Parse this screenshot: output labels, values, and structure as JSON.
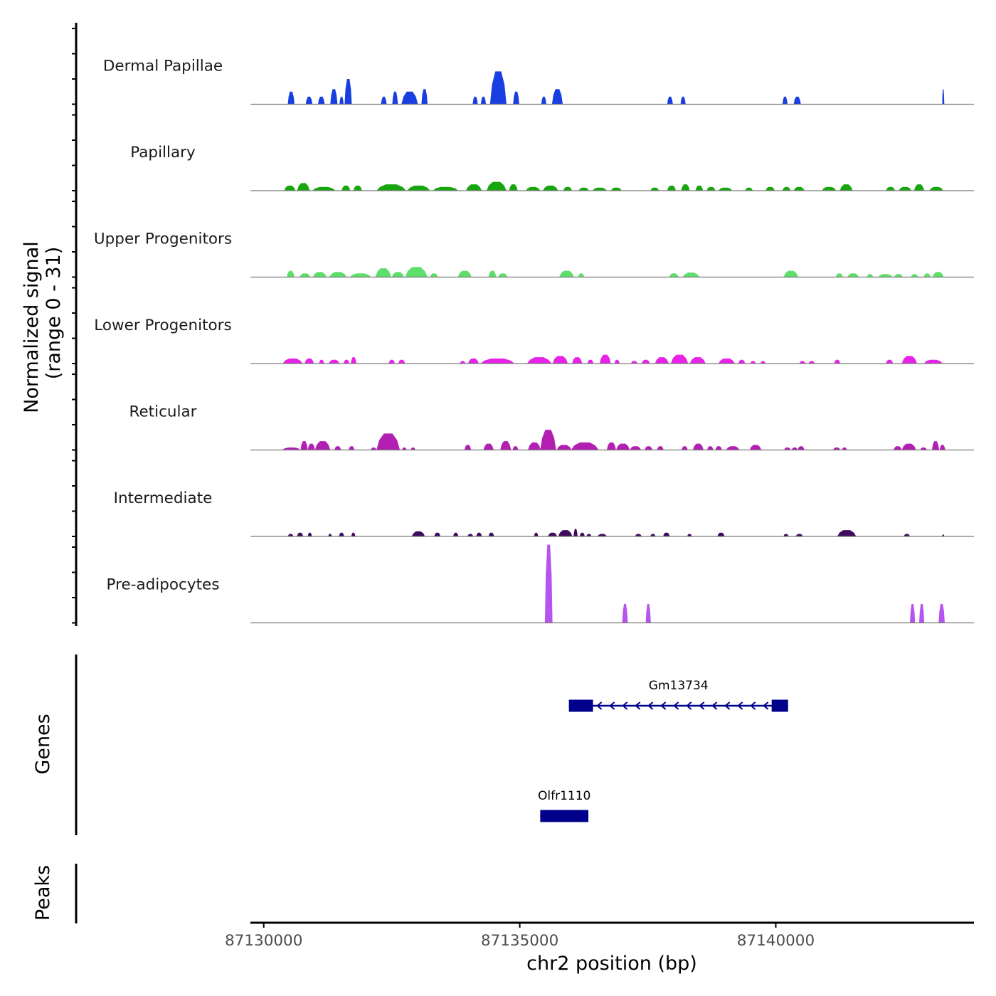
{
  "chart_data": {
    "type": "area",
    "chromosome": "chr2",
    "xlabel": "chr2 position (bp)",
    "ylabel_line1": "Normalized signal",
    "ylabel_line2": "(range 0 - 31)",
    "y_range": [
      0,
      31
    ],
    "xlim": [
      87129740,
      87143870
    ],
    "x_ticks": [
      87130000,
      87135000,
      87140000
    ],
    "x_tick_labels": [
      "87130000",
      "87135000",
      "87140000"
    ],
    "tracks": [
      {
        "name": "Dermal Papillae",
        "color": "#1a3fe0",
        "peaks": [
          [
            87130470,
            87130600,
            5
          ],
          [
            87130820,
            87130950,
            3
          ],
          [
            87131060,
            87131190,
            3
          ],
          [
            87131300,
            87131440,
            6
          ],
          [
            87131480,
            87131560,
            3
          ],
          [
            87131580,
            87131720,
            10
          ],
          [
            87132290,
            87132400,
            3
          ],
          [
            87132510,
            87132620,
            5
          ],
          [
            87132690,
            87133010,
            5
          ],
          [
            87133080,
            87133200,
            6
          ],
          [
            87134080,
            87134180,
            3
          ],
          [
            87134240,
            87134340,
            3
          ],
          [
            87134420,
            87134740,
            13
          ],
          [
            87134870,
            87134990,
            5
          ],
          [
            87135420,
            87135520,
            3
          ],
          [
            87135630,
            87135840,
            6
          ],
          [
            87137880,
            87137990,
            3
          ],
          [
            87138140,
            87138240,
            3
          ],
          [
            87140130,
            87140230,
            3
          ],
          [
            87140350,
            87140490,
            3
          ],
          [
            87143250,
            87143290,
            6
          ]
        ]
      },
      {
        "name": "Papillary",
        "color": "#18a60e",
        "peaks": [
          [
            87130400,
            87130620,
            2
          ],
          [
            87130650,
            87130900,
            3
          ],
          [
            87130950,
            87131400,
            1.5
          ],
          [
            87131520,
            87131690,
            2
          ],
          [
            87131750,
            87131920,
            2
          ],
          [
            87132200,
            87132780,
            2.5
          ],
          [
            87132800,
            87133250,
            2
          ],
          [
            87133300,
            87133800,
            1.5
          ],
          [
            87133950,
            87134260,
            2.5
          ],
          [
            87134350,
            87134740,
            3.5
          ],
          [
            87134790,
            87134960,
            2.5
          ],
          [
            87135120,
            87135400,
            1.5
          ],
          [
            87135450,
            87135750,
            2
          ],
          [
            87135850,
            87136020,
            1.5
          ],
          [
            87136150,
            87136350,
            1.2
          ],
          [
            87136420,
            87136700,
            1.2
          ],
          [
            87136780,
            87136990,
            1.2
          ],
          [
            87137550,
            87137720,
            1.2
          ],
          [
            87137880,
            87138050,
            2
          ],
          [
            87138150,
            87138320,
            2.5
          ],
          [
            87138430,
            87138580,
            2
          ],
          [
            87138650,
            87138820,
            1.5
          ],
          [
            87138880,
            87139150,
            1.2
          ],
          [
            87139400,
            87139550,
            1.2
          ],
          [
            87139800,
            87139980,
            1.5
          ],
          [
            87140130,
            87140290,
            1.5
          ],
          [
            87140350,
            87140560,
            1.5
          ],
          [
            87140900,
            87141180,
            1.5
          ],
          [
            87141250,
            87141500,
            2.5
          ],
          [
            87142150,
            87142330,
            1.5
          ],
          [
            87142400,
            87142650,
            1.5
          ],
          [
            87142700,
            87142900,
            2.5
          ],
          [
            87143000,
            87143270,
            1.5
          ]
        ]
      },
      {
        "name": "Upper Progenitors",
        "color": "#5ede6a",
        "peaks": [
          [
            87130450,
            87130600,
            2.5
          ],
          [
            87130700,
            87130910,
            1.5
          ],
          [
            87130960,
            87131230,
            2
          ],
          [
            87131280,
            87131620,
            2
          ],
          [
            87131680,
            87132100,
            1.5
          ],
          [
            87132180,
            87132490,
            3.5
          ],
          [
            87132500,
            87132740,
            2
          ],
          [
            87132760,
            87133200,
            4
          ],
          [
            87133250,
            87133400,
            1.5
          ],
          [
            87133790,
            87134060,
            2.5
          ],
          [
            87134390,
            87134540,
            2.5
          ],
          [
            87134580,
            87134760,
            1.5
          ],
          [
            87135770,
            87136060,
            2.5
          ],
          [
            87136140,
            87136260,
            1.5
          ],
          [
            87137920,
            87138100,
            1.5
          ],
          [
            87138180,
            87138510,
            1.8
          ],
          [
            87140150,
            87140440,
            2.5
          ],
          [
            87141170,
            87141310,
            1.5
          ],
          [
            87141400,
            87141620,
            1.5
          ],
          [
            87141780,
            87141900,
            1.2
          ],
          [
            87142000,
            87142280,
            1.2
          ],
          [
            87142310,
            87142480,
            1.2
          ],
          [
            87142640,
            87142780,
            1.2
          ],
          [
            87142890,
            87143020,
            1.5
          ],
          [
            87143060,
            87143280,
            2
          ]
        ]
      },
      {
        "name": "Lower Progenitors",
        "color": "#e623e6",
        "peaks": [
          [
            87130370,
            87130760,
            2
          ],
          [
            87130800,
            87130980,
            2
          ],
          [
            87131080,
            87131180,
            1.5
          ],
          [
            87131270,
            87131480,
            1.5
          ],
          [
            87131560,
            87131670,
            1.5
          ],
          [
            87131700,
            87131810,
            2.5
          ],
          [
            87132440,
            87132560,
            1.5
          ],
          [
            87132630,
            87132760,
            1.5
          ],
          [
            87133830,
            87133940,
            1
          ],
          [
            87133990,
            87134200,
            2
          ],
          [
            87134230,
            87134900,
            2
          ],
          [
            87135140,
            87135620,
            2.5
          ],
          [
            87135640,
            87135940,
            3
          ],
          [
            87136020,
            87136220,
            2.5
          ],
          [
            87136320,
            87136440,
            1.5
          ],
          [
            87136560,
            87136780,
            3.5
          ],
          [
            87136850,
            87136950,
            1.5
          ],
          [
            87137170,
            87137300,
            1
          ],
          [
            87137380,
            87137540,
            1.5
          ],
          [
            87137640,
            87137910,
            2.5
          ],
          [
            87137950,
            87138290,
            3.5
          ],
          [
            87138320,
            87138630,
            2.5
          ],
          [
            87138880,
            87139200,
            2
          ],
          [
            87139270,
            87139400,
            1.5
          ],
          [
            87139500,
            87139610,
            1
          ],
          [
            87139700,
            87139800,
            1
          ],
          [
            87140460,
            87140580,
            1
          ],
          [
            87140640,
            87140760,
            1
          ],
          [
            87141140,
            87141260,
            1.5
          ],
          [
            87142150,
            87142290,
            1.5
          ],
          [
            87142460,
            87142760,
            3
          ],
          [
            87142890,
            87143260,
            1.5
          ]
        ]
      },
      {
        "name": "Reticular",
        "color": "#b31fb3",
        "peaks": [
          [
            87130360,
            87130720,
            1
          ],
          [
            87130720,
            87130860,
            3.5
          ],
          [
            87130860,
            87131000,
            2.5
          ],
          [
            87131000,
            87131300,
            3.5
          ],
          [
            87131380,
            87131510,
            1.5
          ],
          [
            87131660,
            87131770,
            1.5
          ],
          [
            87132090,
            87132200,
            1
          ],
          [
            87132200,
            87132660,
            6.5
          ],
          [
            87132700,
            87132790,
            1
          ],
          [
            87132870,
            87132960,
            1
          ],
          [
            87133920,
            87134050,
            2
          ],
          [
            87134290,
            87134490,
            2.5
          ],
          [
            87134620,
            87134830,
            3.5
          ],
          [
            87134860,
            87134970,
            1.5
          ],
          [
            87135160,
            87135410,
            3
          ],
          [
            87135400,
            87135710,
            8
          ],
          [
            87135720,
            87136010,
            2
          ],
          [
            87136000,
            87136540,
            3
          ],
          [
            87136700,
            87136880,
            3
          ],
          [
            87136880,
            87137150,
            2.5
          ],
          [
            87137150,
            87137370,
            1.5
          ],
          [
            87137440,
            87137590,
            1.5
          ],
          [
            87137680,
            87137810,
            1.5
          ],
          [
            87138160,
            87138280,
            1.5
          ],
          [
            87138380,
            87138590,
            2.5
          ],
          [
            87138660,
            87138780,
            1.5
          ],
          [
            87138820,
            87138950,
            1.5
          ],
          [
            87139030,
            87139290,
            1.5
          ],
          [
            87139490,
            87139720,
            2
          ],
          [
            87140160,
            87140290,
            1
          ],
          [
            87140310,
            87140430,
            1
          ],
          [
            87140430,
            87140560,
            1.5
          ],
          [
            87141120,
            87141260,
            1
          ],
          [
            87141290,
            87141390,
            1
          ],
          [
            87142300,
            87142460,
            1.5
          ],
          [
            87142460,
            87142740,
            2.5
          ],
          [
            87142820,
            87142950,
            1
          ],
          [
            87143050,
            87143190,
            3.5
          ],
          [
            87143200,
            87143310,
            2
          ]
        ]
      },
      {
        "name": "Intermediate",
        "color": "#3d0b5c",
        "peaks": [
          [
            87130470,
            87130580,
            1
          ],
          [
            87130650,
            87130770,
            1.5
          ],
          [
            87130860,
            87130940,
            1.5
          ],
          [
            87131260,
            87131330,
            1
          ],
          [
            87131470,
            87131570,
            1.5
          ],
          [
            87131710,
            87131790,
            1.5
          ],
          [
            87132890,
            87133150,
            2
          ],
          [
            87133330,
            87133450,
            1.5
          ],
          [
            87133700,
            87133800,
            1.5
          ],
          [
            87133980,
            87134090,
            1
          ],
          [
            87134150,
            87134260,
            1.5
          ],
          [
            87134390,
            87134500,
            1.5
          ],
          [
            87135280,
            87135360,
            1.5
          ],
          [
            87135550,
            87135730,
            1.5
          ],
          [
            87135750,
            87136030,
            2.5
          ],
          [
            87136050,
            87136130,
            3
          ],
          [
            87136170,
            87136270,
            1.5
          ],
          [
            87136300,
            87136400,
            1
          ],
          [
            87136520,
            87136700,
            1
          ],
          [
            87137250,
            87137380,
            1
          ],
          [
            87137550,
            87137650,
            1
          ],
          [
            87137800,
            87137930,
            1.5
          ],
          [
            87138270,
            87138360,
            1
          ],
          [
            87138860,
            87139000,
            1.5
          ],
          [
            87140150,
            87140250,
            1
          ],
          [
            87140390,
            87140530,
            1
          ],
          [
            87141200,
            87141570,
            2.5
          ],
          [
            87142500,
            87142620,
            1
          ],
          [
            87143250,
            87143290,
            0.8
          ]
        ]
      },
      {
        "name": "Pre-adipocytes",
        "color": "#b554ee",
        "peaks": [
          [
            87135490,
            87135640,
            31
          ],
          [
            87137000,
            87137110,
            7.5
          ],
          [
            87137460,
            87137560,
            7.5
          ],
          [
            87142620,
            87142720,
            7.5
          ],
          [
            87142800,
            87142900,
            7.5
          ],
          [
            87143180,
            87143300,
            7.5
          ]
        ]
      }
    ],
    "genes_label": "Genes",
    "genes": [
      {
        "name": "Gm13734",
        "start": 87135960,
        "end": 87140240,
        "strand": "-",
        "row": 0,
        "exons": [
          [
            87135960,
            87136430
          ],
          [
            87139920,
            87140240
          ]
        ],
        "color": "#00008b"
      },
      {
        "name": "Olfr1110",
        "start": 87135400,
        "end": 87136340,
        "strand": "-",
        "row": 1,
        "exons": [
          [
            87135400,
            87136340
          ]
        ],
        "color": "#00008b"
      }
    ],
    "peaks_label": "Peaks",
    "peak_regions": []
  }
}
